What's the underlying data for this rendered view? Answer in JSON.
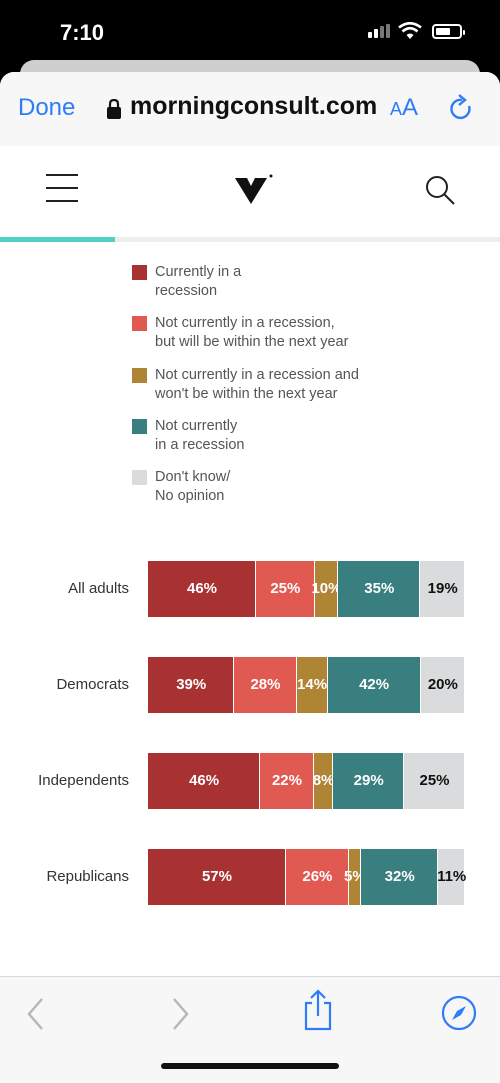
{
  "status": {
    "time": "7:10"
  },
  "browser": {
    "done_label": "Done",
    "domain": "morningconsult.com",
    "aa_small": "A",
    "aa_big": "A"
  },
  "chart_data": {
    "type": "bar",
    "stacked": true,
    "orientation": "horizontal",
    "categories": [
      "All adults",
      "Democrats",
      "Independents",
      "Republicans"
    ],
    "series": [
      {
        "name": "Currently in a recession",
        "legend": [
          "Currently in a",
          "recession"
        ],
        "color": "#a83232",
        "label_color": "#ffffff",
        "values": [
          46,
          39,
          46,
          57
        ]
      },
      {
        "name": "Not currently in a recession, but will be within the next year",
        "legend": [
          "Not currently in a recession,",
          "but will be within the next year"
        ],
        "color": "#e05a52",
        "label_color": "#ffffff",
        "values": [
          25,
          28,
          22,
          26
        ]
      },
      {
        "name": "Not currently in a recession and won't be within the next year",
        "legend": [
          "Not currently in a recession and",
          "won't be within the next year"
        ],
        "color": "#b08435",
        "label_color": "#ffffff",
        "values": [
          10,
          14,
          8,
          5
        ]
      },
      {
        "name": "Not currently in a recession",
        "legend": [
          "Not currently",
          "in a recession"
        ],
        "color": "#3a7f80",
        "label_color": "#ffffff",
        "values": [
          35,
          42,
          29,
          32
        ]
      },
      {
        "name": "Don't know/ No opinion",
        "legend": [
          "Don't know/",
          "No opinion"
        ],
        "color": "#d9dbdc",
        "label_color": "#111111",
        "values": [
          19,
          20,
          25,
          11
        ]
      }
    ],
    "legend_position": "top"
  }
}
